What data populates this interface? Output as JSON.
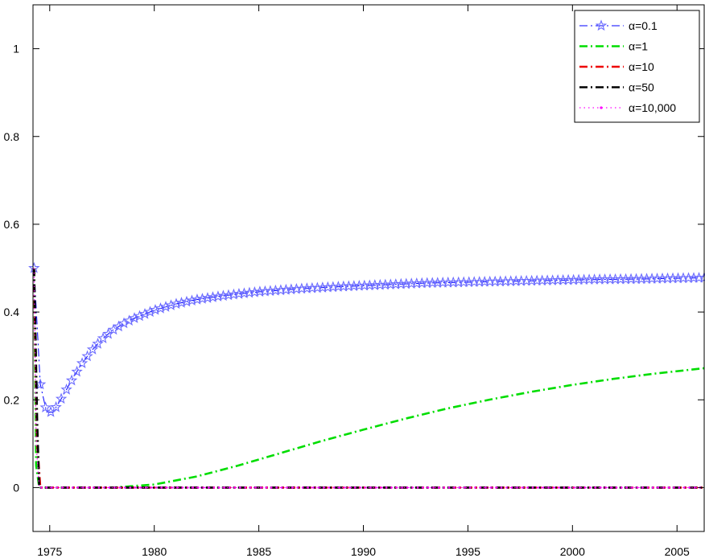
{
  "chart_data": {
    "type": "line",
    "title": "",
    "xlabel": "",
    "ylabel": "",
    "xlim": [
      1974.2,
      2006.3
    ],
    "ylim": [
      -0.1,
      1.1
    ],
    "xticks": [
      1975,
      1980,
      1985,
      1990,
      1995,
      2000,
      2005
    ],
    "yticks": [
      0,
      0.2,
      0.4,
      0.6,
      0.8,
      1
    ],
    "xtick_labels": [
      "1975",
      "1980",
      "1985",
      "1990",
      "1995",
      "2000",
      "2005"
    ],
    "ytick_labels": [
      "0",
      "0.2",
      "0.4",
      "0.6",
      "0.8",
      "1"
    ],
    "grid": false,
    "legend_position": "top-right",
    "series": [
      {
        "name": "α=0.1",
        "color": "#0000ff",
        "marker_color": "#6b6bff",
        "linestyle": "dashdot",
        "marker": "star",
        "x": [
          1974.25,
          1974.55,
          1974.85,
          1975.15,
          1975.5,
          1976,
          1976.5,
          1977,
          1977.5,
          1978,
          1978.5,
          1979,
          1980,
          1981,
          1982,
          1983,
          1984,
          1985,
          1987,
          1989,
          1991,
          1993,
          1995,
          1997,
          1999,
          2001,
          2003,
          2006.3
        ],
        "y": [
          0.5,
          0.235,
          0.172,
          0.172,
          0.198,
          0.24,
          0.28,
          0.312,
          0.338,
          0.358,
          0.373,
          0.385,
          0.404,
          0.418,
          0.428,
          0.435,
          0.441,
          0.446,
          0.453,
          0.458,
          0.462,
          0.466,
          0.468,
          0.47,
          0.472,
          0.474,
          0.475,
          0.478
        ]
      },
      {
        "name": "α=1",
        "color": "#00dd00",
        "linestyle": "dashdot",
        "marker": "none",
        "x": [
          1974.25,
          1974.35,
          1974.5,
          1976,
          1978,
          1980,
          1982,
          1984,
          1986,
          1988,
          1990,
          1992,
          1994,
          1996,
          1998,
          2000,
          2002,
          2004,
          2006.3
        ],
        "y": [
          0.5,
          0.05,
          0.0,
          0.0,
          0.0,
          0.007,
          0.025,
          0.05,
          0.078,
          0.106,
          0.132,
          0.157,
          0.18,
          0.2,
          0.218,
          0.234,
          0.248,
          0.26,
          0.272
        ]
      },
      {
        "name": "α=10",
        "color": "#ee0000",
        "linestyle": "dashdot",
        "marker": "none",
        "x": [
          1974.25,
          1974.3,
          1974.4,
          1974.55,
          1990,
          2006.3
        ],
        "y": [
          0.5,
          0.35,
          0.1,
          0.0,
          0.0,
          0.0
        ]
      },
      {
        "name": "α=50",
        "color": "#000000",
        "linestyle": "dashdot",
        "marker": "none",
        "x": [
          1974.25,
          1974.3,
          1974.4,
          1974.5,
          1990,
          2006.3
        ],
        "y": [
          0.5,
          0.4,
          0.15,
          0.0,
          0.0,
          0.0
        ]
      },
      {
        "name": "α=10,000",
        "color": "#ff00ff",
        "linestyle": "dotted",
        "marker": "dot",
        "x": [
          1974.25,
          1974.35,
          1974.5,
          1990,
          2006.3
        ],
        "y": [
          0.5,
          0.1,
          0.0,
          0.0,
          0.0
        ]
      }
    ]
  }
}
